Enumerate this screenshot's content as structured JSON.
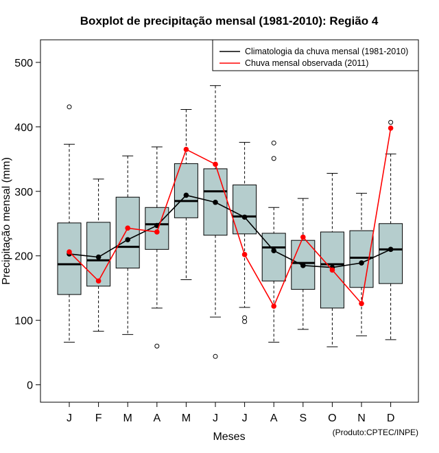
{
  "chart_data": {
    "type": "boxplot",
    "title": "Boxplot de precipitação mensal (1981-2010): Região 4",
    "xlabel": "Meses",
    "ylabel": "Precipitação mensal (mm)",
    "credit": "(Produto:CPTEC/INPE)",
    "ylim": [
      -27,
      535
    ],
    "yticks": [
      0,
      100,
      200,
      300,
      400,
      500
    ],
    "categories": [
      "J",
      "F",
      "M",
      "A",
      "M",
      "J",
      "J",
      "A",
      "S",
      "O",
      "N",
      "D"
    ],
    "boxes": [
      {
        "low": 66,
        "q1": 140,
        "median": 187,
        "q3": 251,
        "high": 373,
        "outliers": [
          431
        ]
      },
      {
        "low": 83,
        "q1": 153,
        "median": 193,
        "q3": 252,
        "high": 319,
        "outliers": []
      },
      {
        "low": 78,
        "q1": 181,
        "median": 214,
        "q3": 291,
        "high": 355,
        "outliers": []
      },
      {
        "low": 119,
        "q1": 210,
        "median": 249,
        "q3": 275,
        "high": 369,
        "outliers": [
          60
        ]
      },
      {
        "low": 163,
        "q1": 259,
        "median": 285,
        "q3": 343,
        "high": 427,
        "outliers": []
      },
      {
        "low": 105,
        "q1": 232,
        "median": 300,
        "q3": 335,
        "high": 464,
        "outliers": [
          44
        ]
      },
      {
        "low": 120,
        "q1": 234,
        "median": 261,
        "q3": 310,
        "high": 376,
        "outliers": [
          98,
          104
        ]
      },
      {
        "low": 66,
        "q1": 161,
        "median": 213,
        "q3": 235,
        "high": 275,
        "outliers": [
          351,
          375
        ]
      },
      {
        "low": 86,
        "q1": 148,
        "median": 189,
        "q3": 224,
        "high": 289,
        "outliers": []
      },
      {
        "low": 59,
        "q1": 119,
        "median": 187,
        "q3": 237,
        "high": 328,
        "outliers": []
      },
      {
        "low": 76,
        "q1": 151,
        "median": 197,
        "q3": 239,
        "high": 297,
        "outliers": []
      },
      {
        "low": 70,
        "q1": 157,
        "median": 210,
        "q3": 250,
        "high": 358,
        "outliers": [
          407
        ]
      }
    ],
    "series": [
      {
        "name": "Climatologia da chuva mensal (1981-2010)",
        "color": "#000000",
        "values": [
          203,
          198,
          225,
          247,
          294,
          283,
          260,
          208,
          185,
          182,
          189,
          210
        ]
      },
      {
        "name": "Chuva mensal observada (2011)",
        "color": "#ff0000",
        "values": [
          206,
          161,
          243,
          237,
          365,
          342,
          202,
          122,
          229,
          178,
          126,
          398
        ]
      }
    ],
    "box_fill": "#b5cdcd",
    "legend_position": "top-right"
  }
}
